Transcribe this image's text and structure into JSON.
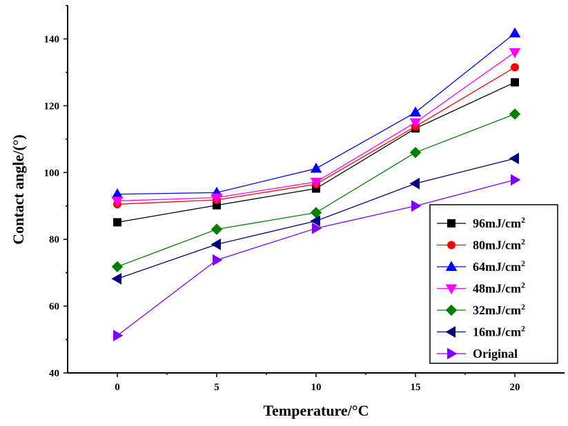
{
  "chart_data": {
    "type": "line",
    "xlabel": "Temperature/°C",
    "ylabel": "Contact angle/(°)",
    "x": [
      0,
      5,
      10,
      15,
      20
    ],
    "xlim": [
      -2.5,
      22.5
    ],
    "ylim": [
      40,
      150
    ],
    "xticks": [
      "0",
      "5",
      "10",
      "15",
      "20"
    ],
    "yticks": [
      "40",
      "60",
      "80",
      "100",
      "120",
      "140"
    ],
    "grid": false,
    "legend_position": "bottom-right",
    "series": [
      {
        "name": "96mJ/cm",
        "sup": "2",
        "color": "#000000",
        "marker": "square",
        "values": [
          85.1,
          90.2,
          95.2,
          113.2,
          127.0
        ]
      },
      {
        "name": "80mJ/cm",
        "sup": "2",
        "color": "#ff0000",
        "marker": "circle",
        "values": [
          90.5,
          91.8,
          96.5,
          113.8,
          131.5
        ]
      },
      {
        "name": "64mJ/cm",
        "sup": "2",
        "color": "#0000ff",
        "marker": "triangle-up",
        "values": [
          93.5,
          94.0,
          101.2,
          118.0,
          141.7
        ]
      },
      {
        "name": "48mJ/cm",
        "sup": "2",
        "color": "#ff00ff",
        "marker": "triangle-down",
        "values": [
          91.5,
          92.5,
          97.2,
          115.0,
          136.0
        ]
      },
      {
        "name": "32mJ/cm",
        "sup": "2",
        "color": "#008000",
        "marker": "diamond",
        "values": [
          71.8,
          83.0,
          88.0,
          106.0,
          117.5
        ]
      },
      {
        "name": "16mJ/cm",
        "sup": "2",
        "color": "#000080",
        "marker": "triangle-left",
        "values": [
          68.2,
          78.5,
          85.5,
          96.7,
          104.2
        ]
      },
      {
        "name": "Original",
        "sup": "",
        "color": "#8000ff",
        "marker": "triangle-right",
        "values": [
          51.2,
          73.8,
          83.3,
          90.0,
          97.8
        ]
      }
    ]
  }
}
